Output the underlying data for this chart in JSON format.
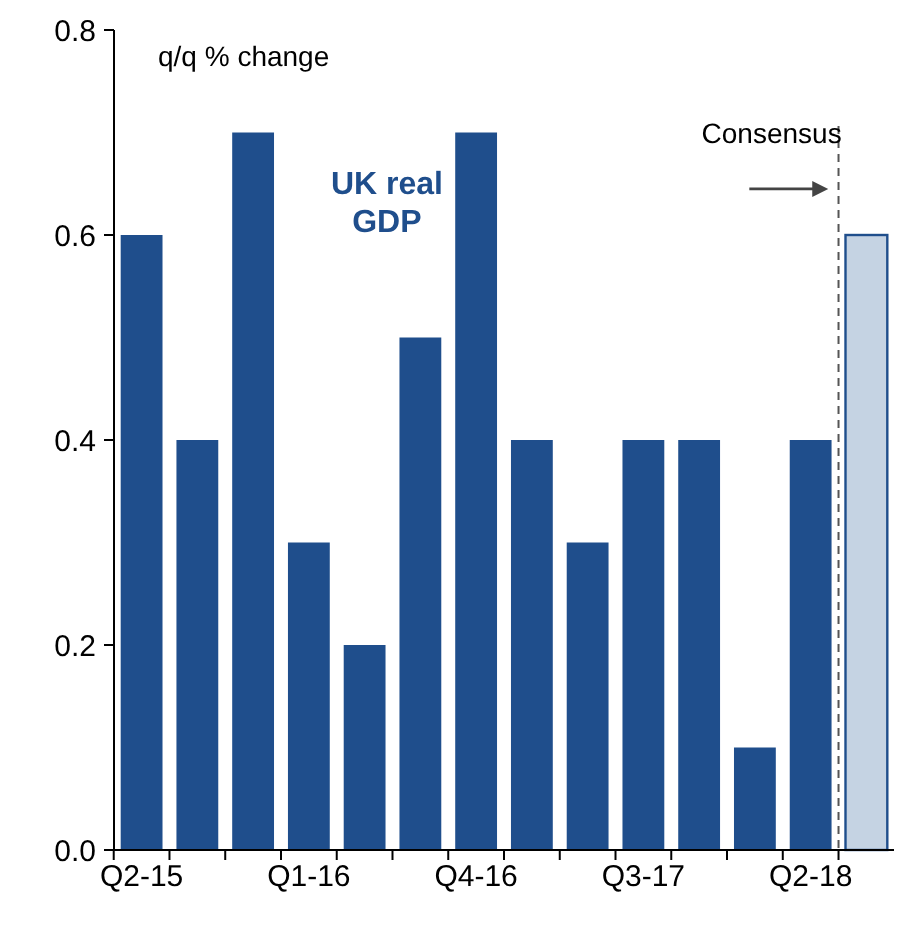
{
  "chart_data": {
    "type": "bar",
    "ylabel": "q/q % change",
    "categories": [
      "Q2-15",
      null,
      null,
      "Q1-16",
      null,
      null,
      "Q4-16",
      null,
      null,
      "Q3-17",
      null,
      null,
      "Q2-18",
      null
    ],
    "values": [
      0.6,
      0.4,
      0.7,
      0.3,
      0.2,
      0.5,
      0.7,
      0.4,
      0.3,
      0.4,
      0.4,
      0.1,
      0.4,
      0.6
    ],
    "colors": [
      "#1f4e8c",
      "#1f4e8c",
      "#1f4e8c",
      "#1f4e8c",
      "#1f4e8c",
      "#1f4e8c",
      "#1f4e8c",
      "#1f4e8c",
      "#1f4e8c",
      "#1f4e8c",
      "#1f4e8c",
      "#1f4e8c",
      "#1f4e8c",
      "#c5d3e3"
    ],
    "ylim": [
      0,
      0.8
    ],
    "yticks": [
      {
        "value": 0,
        "label": "0.0"
      },
      0.2,
      0.4,
      0.6,
      0.8
    ],
    "annotations": [
      "UK real GDP",
      "Consensus"
    ]
  }
}
